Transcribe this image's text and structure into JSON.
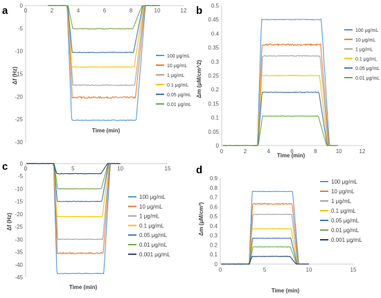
{
  "colors": [
    "#5B9BD5",
    "#ED7D31",
    "#A5A5A5",
    "#FFC000",
    "#4472C4",
    "#70AD47",
    "#264478"
  ],
  "chart_data": [
    {
      "id": "a",
      "panel_label": "a",
      "type": "line",
      "xlabel": "Time (min)",
      "ylabel": "Δf (Hz)",
      "xlim": [
        0,
        12
      ],
      "ylim": [
        -30,
        0
      ],
      "xticks": [
        0,
        2,
        4,
        6,
        8,
        10,
        12
      ],
      "yticks": [
        0,
        -5,
        -10,
        -15,
        -20,
        -25,
        -30
      ],
      "xaxis_at_top": true,
      "legend_position": "right",
      "plateau_start": 3.5,
      "plateau_end": 8.1,
      "trace_x_range": [
        1.7,
        10.2
      ],
      "series": [
        {
          "name": "100 μg/mL",
          "plateau": -25.2
        },
        {
          "name": "10 μg/mL",
          "plateau": -20.2
        },
        {
          "name": "1 μg/mL",
          "plateau": -17.5
        },
        {
          "name": "0.1 μg/mL",
          "plateau": -13.5
        },
        {
          "name": "0.05 μg/mL",
          "plateau": -10.3
        },
        {
          "name": "0.01 μg/mL",
          "plateau": -5.1
        }
      ]
    },
    {
      "id": "b",
      "panel_label": "b",
      "type": "line",
      "xlabel": "Time (min)",
      "ylabel": "Δm (μM/cm^2)",
      "xlim": [
        0,
        12
      ],
      "ylim": [
        0,
        0.5
      ],
      "xticks": [
        0,
        2,
        4,
        6,
        8,
        10,
        12
      ],
      "yticks": [
        0,
        0.05,
        0.1,
        0.15,
        0.2,
        0.25,
        0.3,
        0.35,
        0.4,
        0.45,
        0.5
      ],
      "xaxis_at_top": false,
      "legend_position": "right",
      "plateau_start": 3.4,
      "plateau_end": 8.2,
      "trace_x_range": [
        0.1,
        9.9
      ],
      "series": [
        {
          "name": "100 μg/mL",
          "plateau": 0.45
        },
        {
          "name": "10 μg/mL",
          "plateau": 0.36
        },
        {
          "name": "1 μg/mL",
          "plateau": 0.32
        },
        {
          "name": "0.1 μg/mL",
          "plateau": 0.25
        },
        {
          "name": "0.05 μg/mL",
          "plateau": 0.19
        },
        {
          "name": "0.01 μg/mL",
          "plateau": 0.105
        }
      ]
    },
    {
      "id": "c",
      "panel_label": "c",
      "type": "line",
      "xlabel": "Time (min)",
      "ylabel": "Δf (Hz)",
      "xlim": [
        0,
        15
      ],
      "ylim": [
        -45,
        0
      ],
      "xticks": [
        0,
        5,
        10,
        15
      ],
      "yticks": [
        0,
        -5,
        -10,
        -15,
        -20,
        -25,
        -30,
        -35,
        -40,
        -45
      ],
      "xaxis_at_top": true,
      "legend_position": "right",
      "plateau_start": 3.3,
      "plateau_end": 7.9,
      "trace_x_range": [
        0.1,
        10.0
      ],
      "series": [
        {
          "name": "100 μg/mL",
          "plateau": -43.5
        },
        {
          "name": "10 μg/mL",
          "plateau": -35.5
        },
        {
          "name": "1 μg/mL",
          "plateau": -30.0
        },
        {
          "name": "0.1 μg/mL",
          "plateau": -21.0
        },
        {
          "name": "0.05 μg/mL",
          "plateau": -15.0
        },
        {
          "name": "0.01 μg/mL",
          "plateau": -10.0
        },
        {
          "name": "0.001 μg/mL",
          "plateau": -4.0
        }
      ]
    },
    {
      "id": "d",
      "panel_label": "d",
      "type": "line",
      "xlabel": "Time (min)",
      "ylabel": "Δm (μM/cm²)",
      "xlim": [
        0,
        15
      ],
      "ylim": [
        0,
        0.9
      ],
      "xticks": [
        0,
        5,
        10,
        15
      ],
      "yticks": [
        0,
        0.1,
        0.2,
        0.3,
        0.4,
        0.5,
        0.6,
        0.7,
        0.8,
        0.9
      ],
      "xaxis_at_top": false,
      "legend_position": "right",
      "plateau_start": 3.6,
      "plateau_end": 7.8,
      "trace_x_range": [
        0.1,
        10.0
      ],
      "series": [
        {
          "name": "100 μg/mL",
          "plateau": 0.76
        },
        {
          "name": "10 μg/mL",
          "plateau": 0.63
        },
        {
          "name": "1 μg/mL",
          "plateau": 0.52
        },
        {
          "name": "0.1 μg/mL",
          "plateau": 0.37
        },
        {
          "name": "0.05 μg/mL",
          "plateau": 0.27
        },
        {
          "name": "0.01 μg/mL",
          "plateau": 0.18
        },
        {
          "name": "0.001 μg/mL",
          "plateau": 0.08
        }
      ]
    }
  ]
}
